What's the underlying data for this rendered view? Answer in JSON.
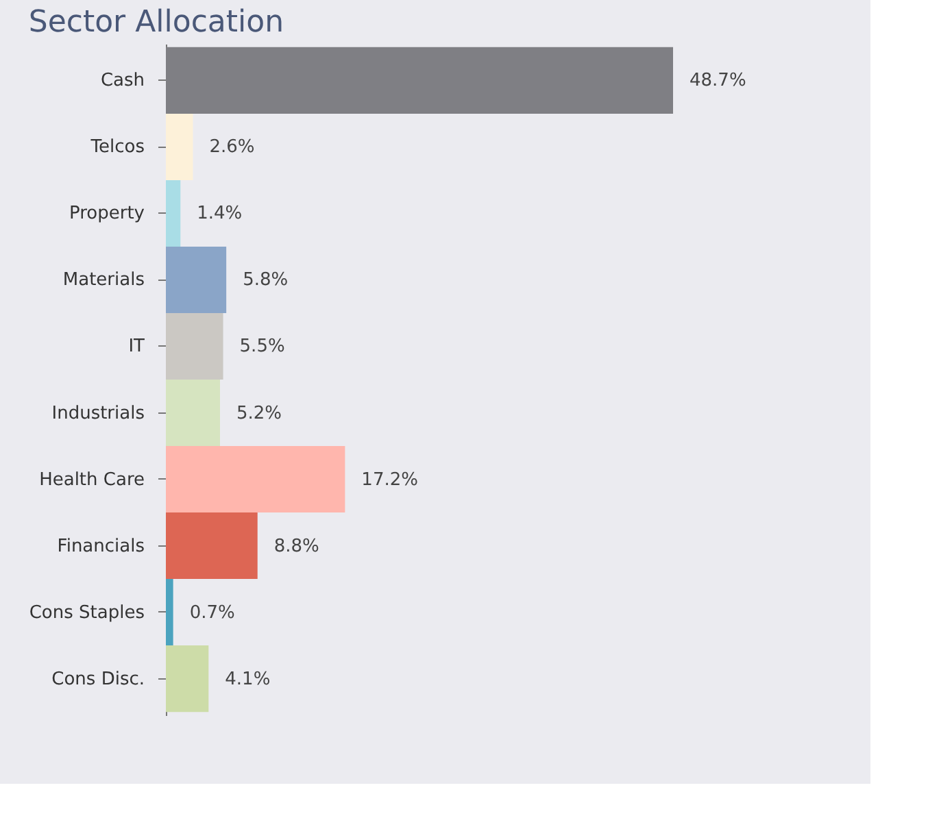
{
  "chart_data": {
    "type": "bar",
    "title": "Sector Allocation",
    "orientation": "horizontal",
    "categories": [
      "Cash",
      "Telcos",
      "Property",
      "Materials",
      "IT",
      "Industrials",
      "Health Care",
      "Financials",
      "Cons Staples",
      "Cons Disc."
    ],
    "values": [
      48.7,
      2.6,
      1.4,
      5.8,
      5.5,
      5.2,
      17.2,
      8.8,
      0.7,
      4.1
    ],
    "value_labels": [
      "48.7%",
      "2.6%",
      "1.4%",
      "5.8%",
      "5.5%",
      "5.2%",
      "17.2%",
      "8.8%",
      "0.7%",
      "4.1%"
    ],
    "colors": [
      "#7f7f84",
      "#fdf1d9",
      "#a9dde6",
      "#8aa5c8",
      "#cbc8c3",
      "#d6e4c0",
      "#ffb6ad",
      "#dd6654",
      "#4ba3bf",
      "#cddca8"
    ]
  }
}
